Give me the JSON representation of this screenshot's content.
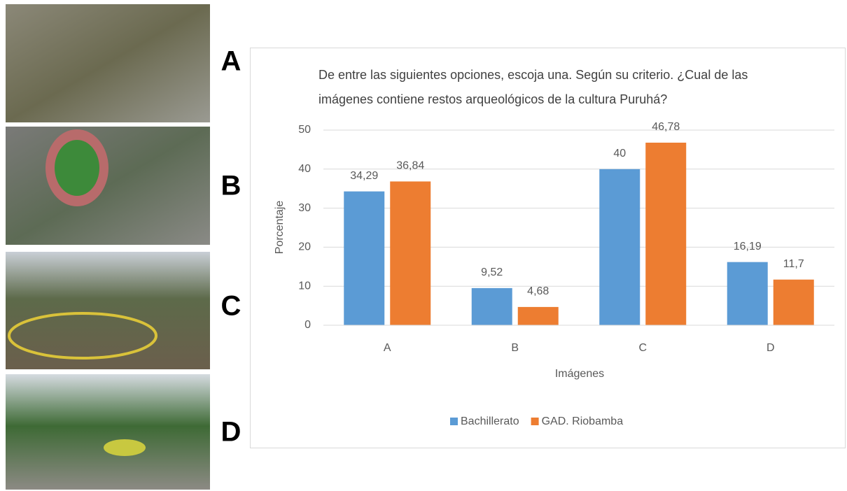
{
  "panel_labels": [
    "A",
    "B",
    "C",
    "D"
  ],
  "chart_data": {
    "type": "bar",
    "title": "De entre las siguientes opciones, escoja una. Según su criterio. ¿Cual de las imágenes contiene restos arqueológicos de la cultura Puruhá?",
    "x_label": "Imágenes",
    "y_label": "Porcentaje",
    "categories": [
      "A",
      "B",
      "C",
      "D"
    ],
    "series": [
      {
        "name": "Bachillerato",
        "color": "#5b9bd5",
        "values": [
          34.29,
          9.52,
          40,
          16.19
        ],
        "value_labels": [
          "34,29",
          "9,52",
          "40",
          "16,19"
        ]
      },
      {
        "name": "GAD. Riobamba",
        "color": "#ed7d31",
        "values": [
          36.84,
          4.68,
          46.78,
          11.7
        ],
        "value_labels": [
          "36,84",
          "4,68",
          "46,78",
          "11,7"
        ]
      }
    ],
    "ylim": [
      0,
      50
    ],
    "yticks": [
      0,
      10,
      20,
      30,
      40,
      50
    ],
    "grid": true,
    "legend": "bottom"
  }
}
